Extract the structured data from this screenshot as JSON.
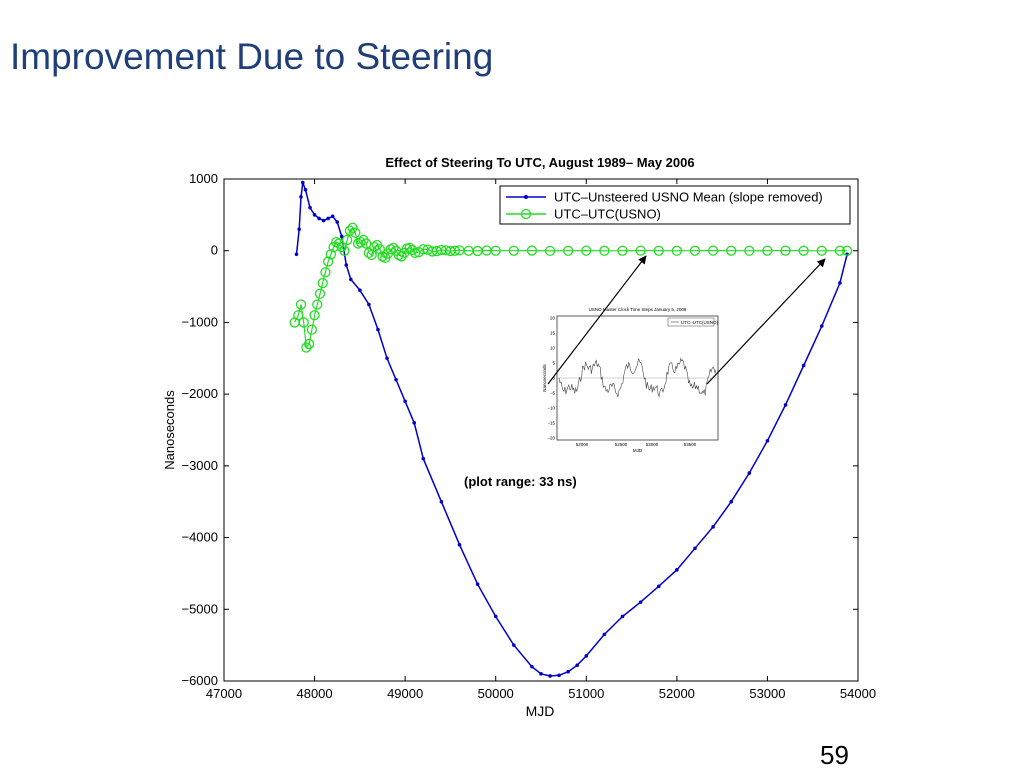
{
  "slide": {
    "title": "Improvement Due to Steering",
    "page_number": "59"
  },
  "chart_data": {
    "type": "line",
    "title": "Effect of Steering To UTC, August 1989– May 2006",
    "xlabel": "MJD",
    "ylabel": "Nanoseconds",
    "xlim": [
      47000,
      54000
    ],
    "ylim": [
      -6000,
      1000
    ],
    "xticks": [
      47000,
      48000,
      49000,
      50000,
      51000,
      52000,
      53000,
      54000
    ],
    "yticks": [
      1000,
      0,
      -1000,
      -2000,
      -3000,
      -4000,
      -5000,
      -6000
    ],
    "ytick_labels": [
      "1000",
      "0",
      "−1000",
      "−2000",
      "−3000",
      "−4000",
      "−5000",
      "−6000"
    ],
    "grid": false,
    "legend_position": "top-right",
    "annotation": "(plot range: 33 ns)",
    "series": [
      {
        "name": "UTC–Unsteered USNO Mean (slope removed)",
        "color": "#0000cc",
        "marker": "dot",
        "x": [
          47800,
          47830,
          47850,
          47870,
          47900,
          47950,
          48000,
          48050,
          48100,
          48150,
          48200,
          48250,
          48300,
          48350,
          48400,
          48500,
          48600,
          48700,
          48800,
          48900,
          49000,
          49100,
          49200,
          49400,
          49600,
          49800,
          50000,
          50200,
          50400,
          50500,
          50600,
          50700,
          50800,
          50900,
          51000,
          51200,
          51400,
          51600,
          51800,
          52000,
          52200,
          52400,
          52600,
          52800,
          53000,
          53200,
          53400,
          53600,
          53800,
          53880
        ],
        "y": [
          -50,
          300,
          750,
          950,
          850,
          600,
          500,
          450,
          420,
          450,
          480,
          400,
          200,
          -200,
          -400,
          -550,
          -750,
          -1100,
          -1500,
          -1800,
          -2100,
          -2400,
          -2900,
          -3500,
          -4100,
          -4650,
          -5100,
          -5500,
          -5800,
          -5900,
          -5930,
          -5920,
          -5870,
          -5780,
          -5650,
          -5350,
          -5100,
          -4900,
          -4680,
          -4450,
          -4150,
          -3850,
          -3500,
          -3100,
          -2650,
          -2150,
          -1600,
          -1050,
          -450,
          -50
        ]
      },
      {
        "name": "UTC–UTC(USNO)",
        "color": "#22dd22",
        "marker": "circle",
        "x": [
          47780,
          47820,
          47850,
          47880,
          47910,
          47940,
          47970,
          48000,
          48030,
          48060,
          48090,
          48120,
          48150,
          48180,
          48210,
          48240,
          48270,
          48300,
          48330,
          48360,
          48390,
          48420,
          48450,
          48480,
          48510,
          48540,
          48570,
          48600,
          48630,
          48660,
          48690,
          48720,
          48750,
          48780,
          48810,
          48840,
          48870,
          48900,
          48930,
          48960,
          48990,
          49020,
          49050,
          49080,
          49110,
          49150,
          49200,
          49250,
          49300,
          49350,
          49400,
          49450,
          49500,
          49550,
          49600,
          49700,
          49800,
          49900,
          50000,
          50200,
          50400,
          50600,
          50800,
          51000,
          51200,
          51400,
          51600,
          51800,
          52000,
          52200,
          52400,
          52600,
          52800,
          53000,
          53200,
          53400,
          53600,
          53800,
          53880
        ],
        "y": [
          -1000,
          -900,
          -750,
          -1000,
          -1350,
          -1300,
          -1100,
          -900,
          -750,
          -600,
          -450,
          -300,
          -150,
          -50,
          50,
          120,
          100,
          50,
          0,
          150,
          280,
          320,
          250,
          100,
          120,
          150,
          100,
          -30,
          -60,
          50,
          80,
          20,
          -80,
          -100,
          -40,
          20,
          40,
          0,
          -60,
          -80,
          -30,
          30,
          40,
          10,
          -30,
          -20,
          20,
          15,
          -10,
          -5,
          10,
          5,
          -5,
          0,
          5,
          0,
          -3,
          3,
          0,
          0,
          2,
          -2,
          0,
          1,
          -1,
          0,
          1,
          0,
          -1,
          0,
          1,
          0,
          -1,
          0,
          1,
          0,
          -1,
          0,
          0
        ]
      }
    ],
    "inset": {
      "title": "USNO Master Clock Time Steps January 5, 2008",
      "legend": "UTC–UTC(USNO)",
      "xticks": [
        "52000",
        "52500",
        "53000",
        "53500"
      ],
      "xlabel": "MJD",
      "ylabel": "Nanoseconds",
      "yticks": [
        "20",
        "15",
        "10",
        "5",
        "0",
        "−5",
        "−10",
        "−15",
        "−20"
      ]
    }
  }
}
